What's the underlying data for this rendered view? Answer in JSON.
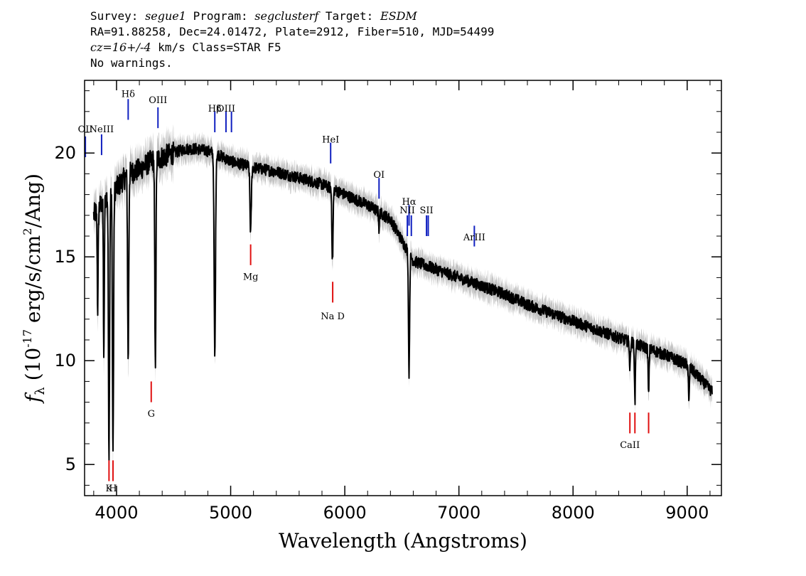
{
  "header": {
    "line1_a": "Survey: ",
    "survey": "segue1",
    "line1_b": " Program: ",
    "program": "segclusterf",
    "line1_c": " Target: ",
    "target": "ESDM",
    "line2": "RA=91.88258, Dec=24.01472, Plate=2912, Fiber=510, MJD=54499",
    "line3_a": "cz=16+/-4",
    "line3_b": " km/s Class=STAR F5",
    "line4": "No warnings."
  },
  "chart_data": {
    "type": "line",
    "xlabel": "Wavelength (Angstroms)",
    "ylabel": "f_λ (10^-17 erg/s/cm^2/Ang)",
    "xlim": [
      3720,
      9300
    ],
    "ylim": [
      3.5,
      23.5
    ],
    "xticks": [
      4000,
      5000,
      6000,
      7000,
      8000,
      9000
    ],
    "yticks": [
      5,
      10,
      15,
      20
    ],
    "colors": {
      "flux": "#000000",
      "error": "#bbbbbb",
      "emission": "#1020c0",
      "absorption": "#e01010"
    },
    "continuum": [
      [
        3800,
        17.0
      ],
      [
        3900,
        17.8
      ],
      [
        4000,
        18.3
      ],
      [
        4100,
        19.0
      ],
      [
        4200,
        19.2
      ],
      [
        4300,
        19.6
      ],
      [
        4400,
        19.8
      ],
      [
        4500,
        20.0
      ],
      [
        4600,
        20.2
      ],
      [
        4700,
        20.2
      ],
      [
        4800,
        20.1
      ],
      [
        4900,
        19.9
      ],
      [
        5000,
        19.6
      ],
      [
        5200,
        19.3
      ],
      [
        5400,
        19.1
      ],
      [
        5600,
        18.8
      ],
      [
        5800,
        18.5
      ],
      [
        6000,
        18.0
      ],
      [
        6200,
        17.5
      ],
      [
        6400,
        16.8
      ],
      [
        6600,
        14.8
      ],
      [
        6800,
        14.4
      ],
      [
        7000,
        14.0
      ],
      [
        7200,
        13.6
      ],
      [
        7400,
        13.2
      ],
      [
        7600,
        12.7
      ],
      [
        7800,
        12.3
      ],
      [
        8000,
        11.9
      ],
      [
        8200,
        11.5
      ],
      [
        8400,
        11.1
      ],
      [
        8600,
        10.7
      ],
      [
        8800,
        10.3
      ],
      [
        9000,
        9.8
      ],
      [
        9220,
        8.5
      ]
    ],
    "absorption_features": [
      [
        3835,
        12.5,
        4
      ],
      [
        3889,
        10.0,
        4
      ],
      [
        3934,
        5.6,
        5
      ],
      [
        3969,
        5.6,
        5
      ],
      [
        4102,
        10.1,
        5
      ],
      [
        4340,
        9.7,
        5
      ],
      [
        4861,
        10.2,
        6
      ],
      [
        5175,
        16.2,
        6
      ],
      [
        5892,
        14.8,
        5
      ],
      [
        6300,
        16.3,
        3
      ],
      [
        6563,
        9.4,
        5
      ],
      [
        8498,
        9.6,
        4
      ],
      [
        8542,
        8.0,
        4
      ],
      [
        8662,
        8.3,
        4
      ],
      [
        9015,
        7.9,
        4
      ]
    ],
    "emission_lines": [
      {
        "label": "OII",
        "wave": 3727,
        "y": 19.8,
        "label_y": 21.0
      },
      {
        "label": "NeIII",
        "wave": 3869,
        "y": 19.9,
        "label_y": 21.0
      },
      {
        "label": "Hδ",
        "wave": 4102,
        "y": 21.6,
        "label_y": 22.7
      },
      {
        "label": "OIII",
        "wave": 4363,
        "y": 21.2,
        "label_y": 22.4
      },
      {
        "label": "Hβ",
        "wave": 4861,
        "y": 21.0,
        "label_y": 22.0
      },
      {
        "label": "OIII",
        "wave": 4959,
        "y": 21.0,
        "label_y": 22.0
      },
      {
        "label": "OIII",
        "wave": 5007,
        "y": 21.0,
        "label_y": 22.0
      },
      {
        "label": "HeI",
        "wave": 5876,
        "y": 19.5,
        "label_y": 20.5
      },
      {
        "label": "OI",
        "wave": 6300,
        "y": 17.8,
        "label_y": 18.8
      },
      {
        "label": "NII",
        "wave": 6548,
        "y": 16.0,
        "label_y": 17.1
      },
      {
        "label": "Hα",
        "wave": 6563,
        "y": 16.5,
        "label_y": 17.5
      },
      {
        "label": "NII",
        "wave": 6583,
        "y": 16.0,
        "label_y": 17.1
      },
      {
        "label": "SII",
        "wave": 6716,
        "y": 16.0,
        "label_y": 17.1
      },
      {
        "label": "SII",
        "wave": 6731,
        "y": 16.0,
        "label_y": 17.1
      },
      {
        "label": "ArIII",
        "wave": 7135,
        "y": 15.5,
        "label_y": 15.8
      }
    ],
    "absorption_lines": [
      {
        "label": "K",
        "wave": 3934,
        "y": 4.2,
        "label_y": 3.7
      },
      {
        "label": "H",
        "wave": 3969,
        "y": 4.2,
        "label_y": 3.7
      },
      {
        "label": "G",
        "wave": 4304,
        "y": 8.0,
        "label_y": 7.3
      },
      {
        "label": "Mg",
        "wave": 5175,
        "y": 14.6,
        "label_y": 13.9
      },
      {
        "label": "Na D",
        "wave": 5894,
        "y": 12.8,
        "label_y": 12.0
      },
      {
        "label": "CaII",
        "wave": 8498,
        "y": 6.5,
        "label_y": 5.8
      },
      {
        "label": "CaII",
        "wave": 8542,
        "y": 6.5,
        "label_y": 5.8
      },
      {
        "label": "CaII",
        "wave": 8662,
        "y": 6.5,
        "label_y": 5.8
      }
    ]
  }
}
